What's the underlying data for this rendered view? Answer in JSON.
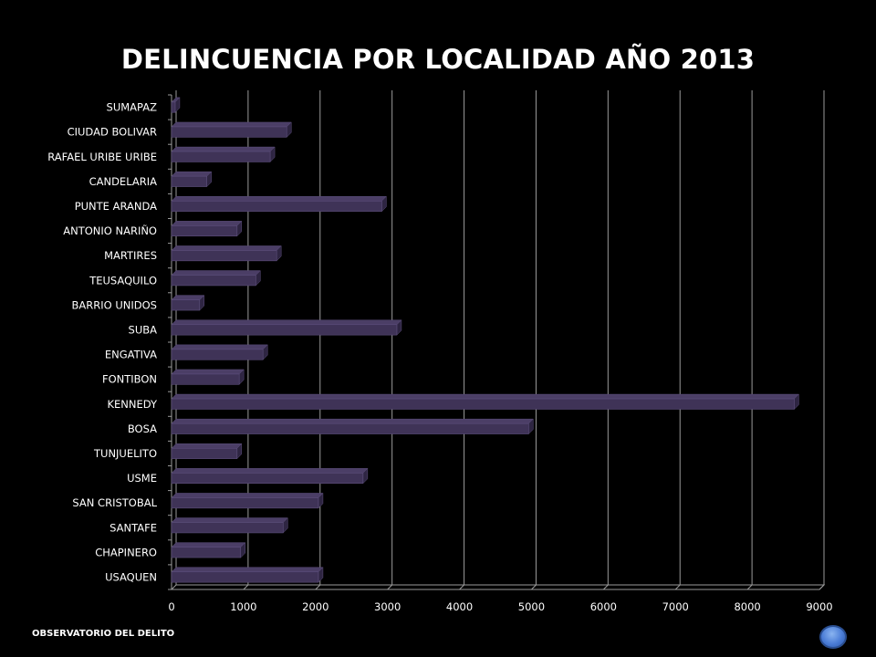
{
  "chart_data": {
    "type": "bar",
    "orientation": "horizontal",
    "title": "DELINCUENCIA POR LOCALIDAD AÑO 2013",
    "categories": [
      "SUMAPAZ",
      "CIUDAD BOLIVAR",
      "RAFAEL URIBE URIBE",
      "CANDELARIA",
      "PUNTE ARANDA",
      "ANTONIO NARIÑO",
      "MARTIRES",
      "TEUSAQUILO",
      "BARRIO UNIDOS",
      "SUBA",
      "ENGATIVA",
      "FONTIBON",
      "KENNEDY",
      "BOSA",
      "TUNJUELITO",
      "USME",
      "SAN CRISTOBAL",
      "SANTAFE",
      "CHAPINERO",
      "USAQUEN"
    ],
    "values": [
      50,
      1600,
      1370,
      490,
      2920,
      910,
      1460,
      1170,
      390,
      3130,
      1270,
      940,
      8650,
      4960,
      910,
      2660,
      2040,
      1550,
      960,
      2040
    ],
    "xlim": [
      0,
      9000
    ],
    "xticks": [
      0,
      1000,
      2000,
      3000,
      4000,
      5000,
      6000,
      7000,
      8000,
      9000
    ],
    "grid": "vertical",
    "legend": "none",
    "bar_color": "#3f3357",
    "bar_edge_color": "#5d4f7c"
  },
  "footer": {
    "label": "OBSERVATORIO DEL DELITO"
  }
}
